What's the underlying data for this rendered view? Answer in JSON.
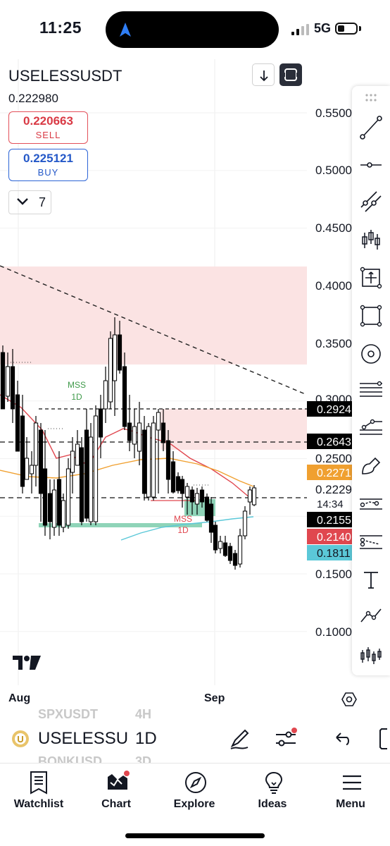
{
  "status": {
    "time": "11:25",
    "network": "5G"
  },
  "symbol": {
    "name": "USELESSUSDT",
    "last_price": "0.222980"
  },
  "sell": {
    "price": "0.220663",
    "label": "SELL"
  },
  "buy": {
    "price": "0.225121",
    "label": "BUY"
  },
  "indicators": {
    "count": "7"
  },
  "price_axis": {
    "ticks": [
      "0.5500",
      "0.5000",
      "0.4500",
      "0.4000",
      "0.3500",
      "0.3000",
      "0.2500",
      "0.2229",
      "0.1500",
      "0.1000"
    ],
    "countdown": "14:34",
    "tags": [
      {
        "text": "0.2924",
        "bg": "#000000",
        "fg": "#ffffff"
      },
      {
        "text": "0.2643",
        "bg": "#000000",
        "fg": "#ffffff"
      },
      {
        "text": "0.2271",
        "bg": "#f0a030",
        "fg": "#ffffff"
      },
      {
        "text": "0.2155",
        "bg": "#000000",
        "fg": "#ffffff"
      },
      {
        "text": "0.2140",
        "bg": "#e0474f",
        "fg": "#ffffff"
      },
      {
        "text": "0.1811",
        "bg": "#5bc8d8",
        "fg": "#131722"
      }
    ]
  },
  "annotations": {
    "mss_green": [
      "MSS",
      "1D"
    ],
    "mss_red": [
      "MSS",
      "1D"
    ]
  },
  "colors": {
    "zone": "#fbe3e3",
    "green_zone": "#8fd4b8",
    "candle": "#000000",
    "ema_red": "#e0474f",
    "ema_orange": "#f0a030",
    "ema_cyan": "#5bc8d8",
    "sell": "#d93a45",
    "buy": "#2458c8"
  },
  "date_axis": {
    "labels": [
      "Aug",
      "Sep"
    ]
  },
  "watch_ghost": {
    "above_symbol": "SPXUSDT",
    "above_tf": "4H",
    "below_symbol": "BONKUSD",
    "below_tf": "3D"
  },
  "current": {
    "symbol": "USELESSU",
    "timeframe": "1D"
  },
  "tools": [
    "drag-handle-icon",
    "trend-line-icon",
    "horizontal-ray-icon",
    "parallel-channel-icon",
    "long-position-icon",
    "crosshair-box-icon",
    "rectangle-icon",
    "ellipse-icon",
    "fib-retracement-icon",
    "pitchfork-icon",
    "brush-icon",
    "forecast-icon",
    "projection-icon",
    "text-icon",
    "path-icon",
    "pattern-icon"
  ],
  "tabs": [
    {
      "label": "Watchlist",
      "icon": "watchlist-icon"
    },
    {
      "label": "Chart",
      "icon": "chart-icon"
    },
    {
      "label": "Explore",
      "icon": "compass-icon"
    },
    {
      "label": "Ideas",
      "icon": "lightbulb-icon"
    },
    {
      "label": "Menu",
      "icon": "hamburger-icon"
    }
  ]
}
